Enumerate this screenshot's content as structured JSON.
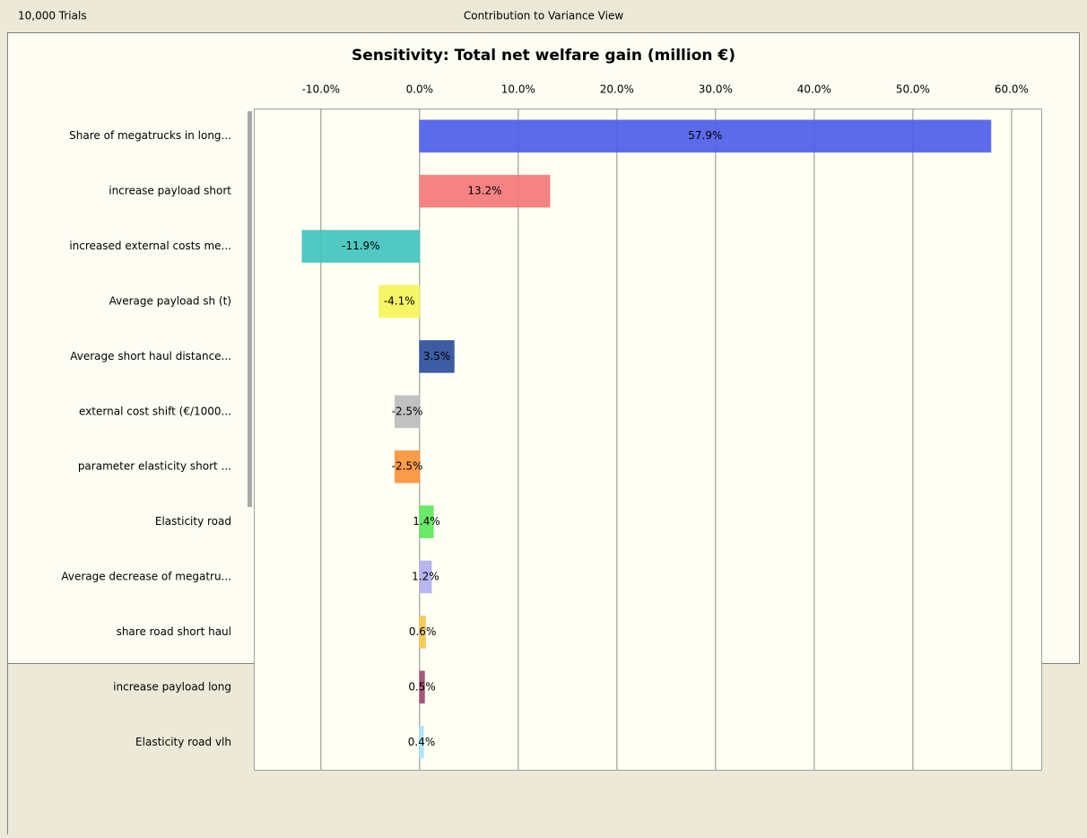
{
  "header": {
    "left": "10,000 Trials",
    "center": "Contribution to Variance View"
  },
  "chart_data": {
    "type": "hbar",
    "title": "Sensitivity: Total net welfare gain (million €)",
    "categories": [
      "Share of megatrucks in long...",
      "increase payload short",
      "increased external costs me...",
      "Average payload sh (t)",
      "Average short haul distance...",
      "external cost shift (€/1000...",
      "parameter elasticity short ...",
      "Elasticity road",
      "Average decrease of megatru...",
      "share road short haul",
      "increase payload long",
      "Elasticity road vlh"
    ],
    "values": [
      57.9,
      13.2,
      -11.9,
      -4.1,
      3.5,
      -2.5,
      -2.5,
      1.4,
      1.2,
      0.6,
      0.5,
      0.4
    ],
    "value_labels": [
      "57.9%",
      "13.2%",
      "-11.9%",
      "-4.1%",
      "3.5%",
      "-2.5%",
      "-2.5%",
      "1.4%",
      "1.2%",
      "0.6%",
      "0.5%",
      "0.4%"
    ],
    "colors": [
      "#4d5ee8",
      "#f47878",
      "#40c4bc",
      "#f4f458",
      "#2e4e9c",
      "#bcbcbc",
      "#f89238",
      "#5ce85c",
      "#b0b0f0",
      "#f4c848",
      "#a04a6c",
      "#a8e4f8"
    ],
    "xlim": [
      -16.8,
      63.1
    ],
    "xticks": [
      {
        "value": -10,
        "label": "-10.0%"
      },
      {
        "value": 0,
        "label": "0.0%"
      },
      {
        "value": 10,
        "label": "10.0%"
      },
      {
        "value": 20,
        "label": "20.0%"
      },
      {
        "value": 30,
        "label": "30.0%"
      },
      {
        "value": 40,
        "label": "40.0%"
      },
      {
        "value": 50,
        "label": "50.0%"
      },
      {
        "value": 60,
        "label": "60.0%"
      }
    ],
    "grid": true
  }
}
